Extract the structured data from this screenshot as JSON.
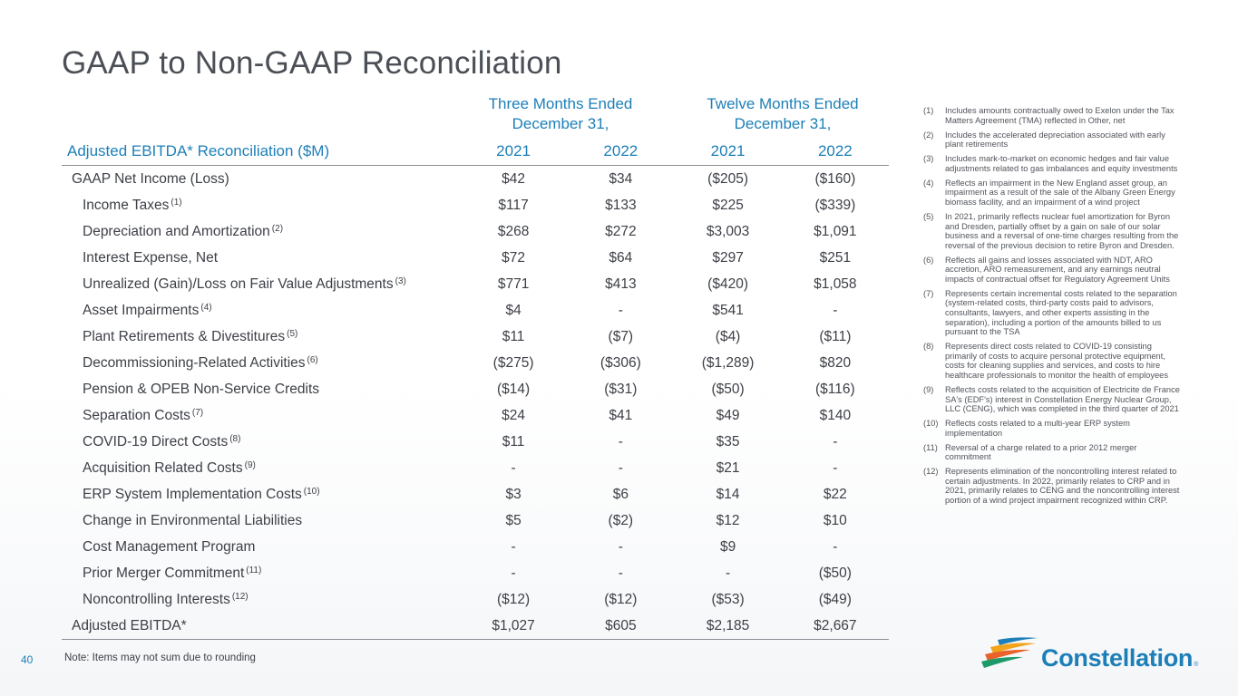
{
  "title": "GAAP to Non-GAAP Reconciliation",
  "periods": {
    "three_months": {
      "line1": "Three Months Ended",
      "line2": "December 31,"
    },
    "twelve_months": {
      "line1": "Twelve Months Ended",
      "line2": "December 31,"
    }
  },
  "table": {
    "label_header": "Adjusted EBITDA* Reconciliation ($M)",
    "columns": [
      "2021",
      "2022",
      "2021",
      "2022"
    ],
    "rows": [
      {
        "label": "GAAP Net Income (Loss)",
        "ref": "",
        "values": [
          "$42",
          "$34",
          "($205)",
          "($160)"
        ]
      },
      {
        "label": "Income Taxes",
        "ref": "(1)",
        "values": [
          "$117",
          "$133",
          "$225",
          "($339)"
        ]
      },
      {
        "label": "Depreciation and Amortization",
        "ref": "(2)",
        "values": [
          "$268",
          "$272",
          "$3,003",
          "$1,091"
        ]
      },
      {
        "label": "Interest Expense, Net",
        "ref": "",
        "values": [
          "$72",
          "$64",
          "$297",
          "$251"
        ]
      },
      {
        "label": "Unrealized (Gain)/Loss on Fair Value Adjustments",
        "ref": "(3)",
        "values": [
          "$771",
          "$413",
          "($420)",
          "$1,058"
        ]
      },
      {
        "label": "Asset Impairments",
        "ref": "(4)",
        "values": [
          "$4",
          "-",
          "$541",
          "-"
        ]
      },
      {
        "label": "Plant Retirements & Divestitures",
        "ref": "(5)",
        "values": [
          "$11",
          "($7)",
          "($4)",
          "($11)"
        ]
      },
      {
        "label": "Decommissioning-Related Activities",
        "ref": "(6)",
        "values": [
          "($275)",
          "($306)",
          "($1,289)",
          "$820"
        ]
      },
      {
        "label": "Pension & OPEB Non-Service Credits",
        "ref": "",
        "values": [
          "($14)",
          "($31)",
          "($50)",
          "($116)"
        ]
      },
      {
        "label": "Separation Costs",
        "ref": "(7)",
        "values": [
          "$24",
          "$41",
          "$49",
          "$140"
        ]
      },
      {
        "label": "COVID-19 Direct Costs",
        "ref": "(8)",
        "values": [
          "$11",
          "-",
          "$35",
          "-"
        ]
      },
      {
        "label": "Acquisition Related Costs",
        "ref": "(9)",
        "values": [
          "-",
          "-",
          "$21",
          "-"
        ]
      },
      {
        "label": "ERP System Implementation Costs",
        "ref": "(10)",
        "values": [
          "$3",
          "$6",
          "$14",
          "$22"
        ]
      },
      {
        "label": "Change in Environmental Liabilities",
        "ref": "",
        "values": [
          "$5",
          "($2)",
          "$12",
          "$10"
        ]
      },
      {
        "label": "Cost Management Program",
        "ref": "",
        "values": [
          "-",
          "-",
          "$9",
          "-"
        ]
      },
      {
        "label": "Prior Merger Commitment",
        "ref": "(11)",
        "values": [
          "-",
          "-",
          "-",
          "($50)"
        ]
      },
      {
        "label": "Noncontrolling Interests",
        "ref": "(12)",
        "values": [
          "($12)",
          "($12)",
          "($53)",
          "($49)"
        ]
      },
      {
        "label": "Adjusted EBITDA*",
        "ref": "",
        "values": [
          "$1,027",
          "$605",
          "$2,185",
          "$2,667"
        ]
      }
    ]
  },
  "footnotes": [
    {
      "num": "(1)",
      "text": "Includes amounts contractually owed to Exelon under the Tax Matters Agreement (TMA) reflected in Other, net"
    },
    {
      "num": "(2)",
      "text": "Includes the accelerated depreciation associated with early plant retirements"
    },
    {
      "num": "(3)",
      "text": "Includes mark-to-market on economic hedges and fair value adjustments related to gas imbalances and equity investments"
    },
    {
      "num": "(4)",
      "text": "Reflects an impairment in the New England asset group, an impairment as a result of the sale of the Albany Green Energy biomass facility, and an impairment of a wind project"
    },
    {
      "num": "(5)",
      "text": "In 2021, primarily reflects nuclear fuel amortization for Byron and Dresden, partially offset by a gain on sale of our solar business and a reversal of one-time charges resulting from the reversal of the previous decision to retire Byron and Dresden."
    },
    {
      "num": "(6)",
      "text": "Reflects all gains and losses associated with NDT, ARO accretion, ARO remeasurement, and any earnings neutral impacts of contractual offset for Regulatory Agreement Units"
    },
    {
      "num": "(7)",
      "text": "Represents certain incremental costs related to the separation (system-related costs, third-party costs paid to advisors, consultants, lawyers, and other experts assisting in the separation), including a portion of the amounts billed to us pursuant to the TSA"
    },
    {
      "num": "(8)",
      "text": "Represents direct costs related to COVID-19 consisting primarily of costs to acquire personal protective equipment, costs for cleaning supplies and services, and costs to hire healthcare professionals to monitor the health of employees"
    },
    {
      "num": "(9)",
      "text": "Reflects costs related to the acquisition of Electricite de France SA's (EDF's) interest in Constellation Energy Nuclear Group, LLC (CENG), which was completed in the third quarter of 2021"
    },
    {
      "num": "(10)",
      "text": "Reflects costs related to a multi-year ERP system implementation"
    },
    {
      "num": "(11)",
      "text": "Reversal of a charge related to a prior 2012 merger commitment"
    },
    {
      "num": "(12)",
      "text": "Represents elimination of the noncontrolling interest related to certain adjustments. In 2022, primarily relates to CRP and in 2021, primarily relates to CENG and the noncontrolling interest portion of a wind project impairment recognized within CRP."
    }
  ],
  "footer": {
    "page_number": "40",
    "note": "Note: Items may not sum due to rounding",
    "logo_text": "Constellation",
    "logo_mark": "®"
  },
  "colors": {
    "accent": "#1d7fb8",
    "text": "#3d4047",
    "rule": "#8a8e94"
  }
}
